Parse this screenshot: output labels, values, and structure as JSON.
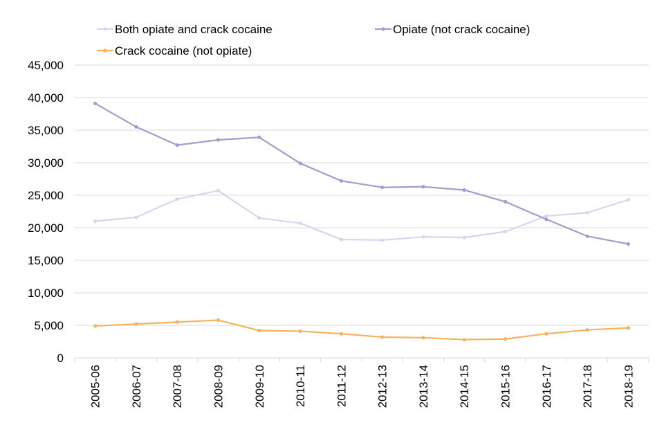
{
  "chart_data": {
    "type": "line",
    "categories": [
      "2005-06",
      "2006-07",
      "2007-08",
      "2008-09",
      "2009-10",
      "2010-11",
      "2011-12",
      "2012-13",
      "2013-14",
      "2014-15",
      "2015-16",
      "2016-17",
      "2017-18",
      "2018-19"
    ],
    "ylim": [
      0,
      45000
    ],
    "yticks": [
      0,
      5000,
      10000,
      15000,
      20000,
      25000,
      30000,
      35000,
      40000,
      45000
    ],
    "ytick_labels": [
      "0",
      "5,000",
      "10,000",
      "15,000",
      "20,000",
      "25,000",
      "30,000",
      "35,000",
      "40,000",
      "45,000"
    ],
    "grid": true,
    "legend_position": "top",
    "series": [
      {
        "name": "Both opiate and crack cocaine",
        "color": "#d9d6ec",
        "values": [
          21000,
          21600,
          24400,
          25700,
          21500,
          20700,
          18200,
          18100,
          18600,
          18500,
          19400,
          21800,
          22300,
          24300
        ]
      },
      {
        "name": "Opiate (not crack cocaine)",
        "color": "#a29dcb",
        "values": [
          39100,
          35500,
          32700,
          33500,
          33900,
          29900,
          27200,
          26200,
          26300,
          25800,
          24000,
          21300,
          18700,
          17500
        ]
      },
      {
        "name": "Crack cocaine (not opiate)",
        "color": "#f6b25e",
        "values": [
          4900,
          5200,
          5500,
          5800,
          4200,
          4100,
          3700,
          3200,
          3100,
          2800,
          2900,
          3700,
          4300,
          4600
        ]
      }
    ]
  }
}
